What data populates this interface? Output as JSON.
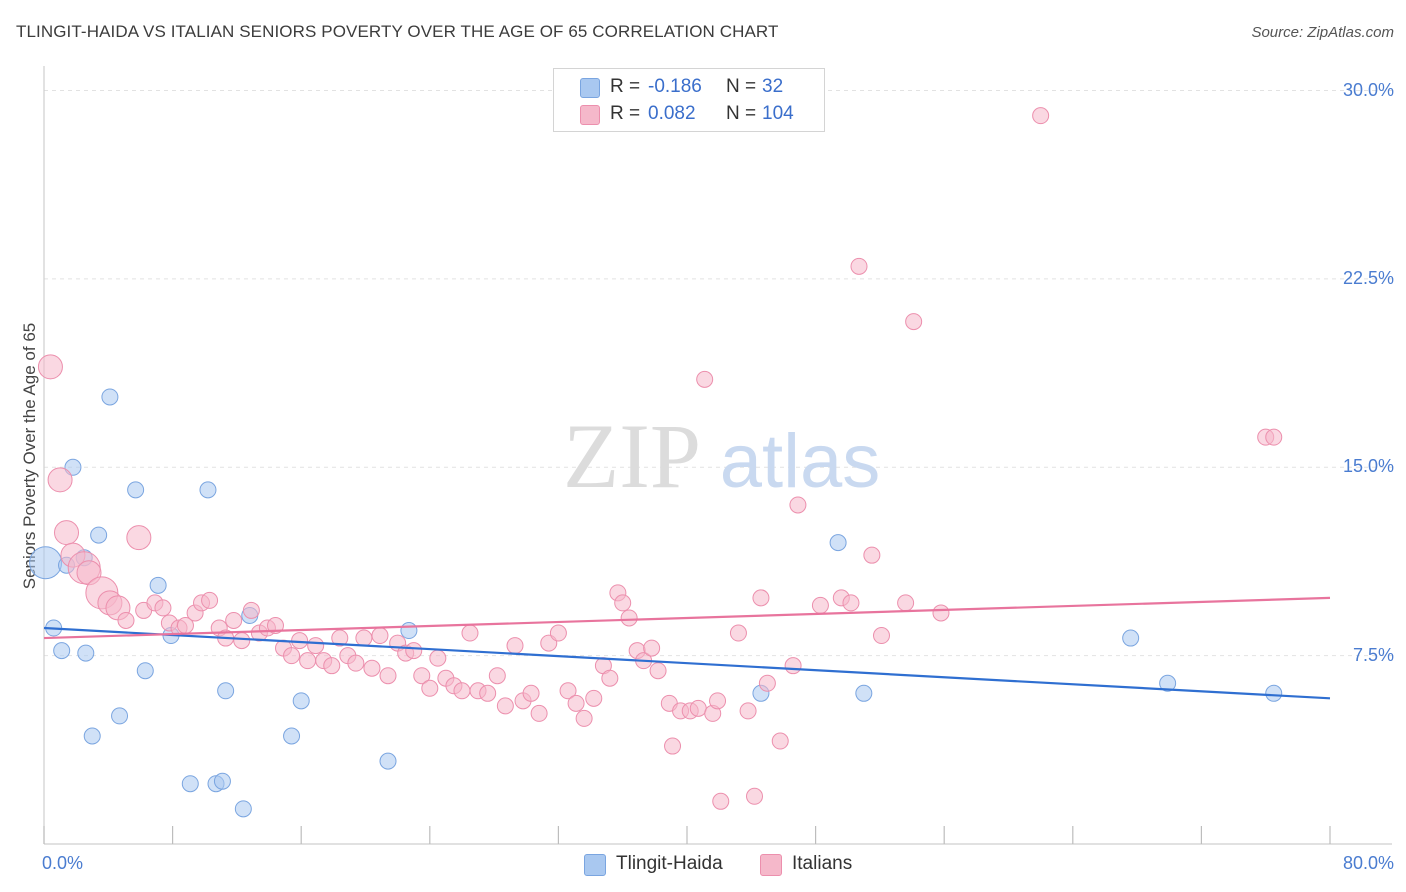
{
  "title": "TLINGIT-HAIDA VS ITALIAN SENIORS POVERTY OVER THE AGE OF 65 CORRELATION CHART",
  "source": "Source: ZipAtlas.com",
  "watermark": {
    "zip": "ZIP",
    "atlas": "atlas"
  },
  "stats": [
    {
      "r_label": "R =",
      "r_value": "-0.186",
      "n_label": "N =",
      "n_value": "32",
      "color": "#a9c8f0"
    },
    {
      "r_label": "R =",
      "r_value": "0.082",
      "n_label": "N =",
      "n_value": "104",
      "color": "#f5b8ca"
    }
  ],
  "chart_data": {
    "type": "scatter",
    "title": "TLINGIT-HAIDA VS ITALIAN SENIORS POVERTY OVER THE AGE OF 65 CORRELATION CHART",
    "xlabel": "",
    "ylabel": "Seniors Poverty Over the Age of 65",
    "xlim": [
      0,
      80
    ],
    "ylim": [
      0,
      30.5
    ],
    "x_tick_labels": [
      {
        "value": 0,
        "label": "0.0%"
      },
      {
        "value": 80,
        "label": "80.0%"
      }
    ],
    "y_tick_labels": [
      {
        "value": 7.5,
        "label": "7.5%"
      },
      {
        "value": 15,
        "label": "15.0%"
      },
      {
        "value": 22.5,
        "label": "22.5%"
      },
      {
        "value": 30,
        "label": "30.0%"
      }
    ],
    "grid": "horizontal dashed",
    "legend_position": "bottom-center",
    "series": [
      {
        "name": "Tlingit-Haida",
        "color": "#a9c8f0",
        "stroke": "#7aa5e0",
        "trend_color": "#2f6fd1",
        "trend": {
          "x": [
            0,
            80
          ],
          "y": [
            8.6,
            5.8
          ]
        },
        "points": [
          {
            "x": 0.1,
            "y": 11.2,
            "s": 3
          },
          {
            "x": 0.6,
            "y": 8.6,
            "s": 1
          },
          {
            "x": 1.1,
            "y": 7.7,
            "s": 1
          },
          {
            "x": 1.4,
            "y": 11.1,
            "s": 1
          },
          {
            "x": 1.8,
            "y": 15.0,
            "s": 1
          },
          {
            "x": 2.5,
            "y": 11.4,
            "s": 1
          },
          {
            "x": 2.6,
            "y": 7.6,
            "s": 1
          },
          {
            "x": 3.0,
            "y": 4.3,
            "s": 1
          },
          {
            "x": 3.4,
            "y": 12.3,
            "s": 1
          },
          {
            "x": 4.1,
            "y": 17.8,
            "s": 1
          },
          {
            "x": 4.7,
            "y": 5.1,
            "s": 1
          },
          {
            "x": 5.7,
            "y": 14.1,
            "s": 1
          },
          {
            "x": 6.3,
            "y": 6.9,
            "s": 1
          },
          {
            "x": 7.1,
            "y": 10.3,
            "s": 1
          },
          {
            "x": 7.9,
            "y": 8.3,
            "s": 1
          },
          {
            "x": 9.1,
            "y": 2.4,
            "s": 1
          },
          {
            "x": 10.2,
            "y": 14.1,
            "s": 1
          },
          {
            "x": 10.7,
            "y": 2.4,
            "s": 1
          },
          {
            "x": 11.1,
            "y": 2.5,
            "s": 1
          },
          {
            "x": 11.3,
            "y": 6.1,
            "s": 1
          },
          {
            "x": 12.4,
            "y": 1.4,
            "s": 1
          },
          {
            "x": 12.8,
            "y": 9.1,
            "s": 1
          },
          {
            "x": 15.4,
            "y": 4.3,
            "s": 1
          },
          {
            "x": 16.0,
            "y": 5.7,
            "s": 1
          },
          {
            "x": 21.4,
            "y": 3.3,
            "s": 1
          },
          {
            "x": 22.7,
            "y": 8.5,
            "s": 1
          },
          {
            "x": 44.6,
            "y": 6.0,
            "s": 1
          },
          {
            "x": 49.4,
            "y": 12.0,
            "s": 1
          },
          {
            "x": 51.0,
            "y": 6.0,
            "s": 1
          },
          {
            "x": 67.6,
            "y": 8.2,
            "s": 1
          },
          {
            "x": 69.9,
            "y": 6.4,
            "s": 1
          },
          {
            "x": 76.5,
            "y": 6.0,
            "s": 1
          }
        ]
      },
      {
        "name": "Italians",
        "color": "#f5b8ca",
        "stroke": "#ec8fad",
        "trend_color": "#e8749d",
        "trend": {
          "x": [
            0,
            80
          ],
          "y": [
            8.2,
            9.8
          ]
        },
        "points": [
          {
            "x": 0.4,
            "y": 19.0,
            "s": 2
          },
          {
            "x": 1.0,
            "y": 14.5,
            "s": 2
          },
          {
            "x": 1.4,
            "y": 12.4,
            "s": 2
          },
          {
            "x": 1.8,
            "y": 11.5,
            "s": 2
          },
          {
            "x": 2.5,
            "y": 11.0,
            "s": 3
          },
          {
            "x": 2.8,
            "y": 10.8,
            "s": 2
          },
          {
            "x": 3.6,
            "y": 10.0,
            "s": 3
          },
          {
            "x": 4.1,
            "y": 9.6,
            "s": 2
          },
          {
            "x": 4.6,
            "y": 9.4,
            "s": 2
          },
          {
            "x": 5.1,
            "y": 8.9,
            "s": 1
          },
          {
            "x": 5.9,
            "y": 12.2,
            "s": 2
          },
          {
            "x": 6.2,
            "y": 9.3,
            "s": 1
          },
          {
            "x": 6.9,
            "y": 9.6,
            "s": 1
          },
          {
            "x": 7.4,
            "y": 9.4,
            "s": 1
          },
          {
            "x": 7.8,
            "y": 8.8,
            "s": 1
          },
          {
            "x": 8.4,
            "y": 8.6,
            "s": 1
          },
          {
            "x": 8.8,
            "y": 8.7,
            "s": 1
          },
          {
            "x": 9.4,
            "y": 9.2,
            "s": 1
          },
          {
            "x": 9.8,
            "y": 9.6,
            "s": 1
          },
          {
            "x": 10.3,
            "y": 9.7,
            "s": 1
          },
          {
            "x": 10.9,
            "y": 8.6,
            "s": 1
          },
          {
            "x": 11.3,
            "y": 8.2,
            "s": 1
          },
          {
            "x": 11.8,
            "y": 8.9,
            "s": 1
          },
          {
            "x": 12.3,
            "y": 8.1,
            "s": 1
          },
          {
            "x": 12.9,
            "y": 9.3,
            "s": 1
          },
          {
            "x": 13.4,
            "y": 8.4,
            "s": 1
          },
          {
            "x": 13.9,
            "y": 8.6,
            "s": 1
          },
          {
            "x": 14.4,
            "y": 8.7,
            "s": 1
          },
          {
            "x": 14.9,
            "y": 7.8,
            "s": 1
          },
          {
            "x": 15.4,
            "y": 7.5,
            "s": 1
          },
          {
            "x": 15.9,
            "y": 8.1,
            "s": 1
          },
          {
            "x": 16.4,
            "y": 7.3,
            "s": 1
          },
          {
            "x": 16.9,
            "y": 7.9,
            "s": 1
          },
          {
            "x": 17.4,
            "y": 7.3,
            "s": 1
          },
          {
            "x": 17.9,
            "y": 7.1,
            "s": 1
          },
          {
            "x": 18.4,
            "y": 8.2,
            "s": 1
          },
          {
            "x": 18.9,
            "y": 7.5,
            "s": 1
          },
          {
            "x": 19.4,
            "y": 7.2,
            "s": 1
          },
          {
            "x": 19.9,
            "y": 8.2,
            "s": 1
          },
          {
            "x": 20.4,
            "y": 7.0,
            "s": 1
          },
          {
            "x": 20.9,
            "y": 8.3,
            "s": 1
          },
          {
            "x": 21.4,
            "y": 6.7,
            "s": 1
          },
          {
            "x": 22.0,
            "y": 8.0,
            "s": 1
          },
          {
            "x": 22.5,
            "y": 7.6,
            "s": 1
          },
          {
            "x": 23.0,
            "y": 7.7,
            "s": 1
          },
          {
            "x": 23.5,
            "y": 6.7,
            "s": 1
          },
          {
            "x": 24.0,
            "y": 6.2,
            "s": 1
          },
          {
            "x": 24.5,
            "y": 7.4,
            "s": 1
          },
          {
            "x": 25.0,
            "y": 6.6,
            "s": 1
          },
          {
            "x": 25.5,
            "y": 6.3,
            "s": 1
          },
          {
            "x": 26.0,
            "y": 6.1,
            "s": 1
          },
          {
            "x": 26.5,
            "y": 8.4,
            "s": 1
          },
          {
            "x": 27.0,
            "y": 6.1,
            "s": 1
          },
          {
            "x": 27.6,
            "y": 6.0,
            "s": 1
          },
          {
            "x": 28.2,
            "y": 6.7,
            "s": 1
          },
          {
            "x": 28.7,
            "y": 5.5,
            "s": 1
          },
          {
            "x": 29.3,
            "y": 7.9,
            "s": 1
          },
          {
            "x": 29.8,
            "y": 5.7,
            "s": 1
          },
          {
            "x": 30.3,
            "y": 6.0,
            "s": 1
          },
          {
            "x": 30.8,
            "y": 5.2,
            "s": 1
          },
          {
            "x": 31.4,
            "y": 8.0,
            "s": 1
          },
          {
            "x": 32.0,
            "y": 8.4,
            "s": 1
          },
          {
            "x": 32.6,
            "y": 6.1,
            "s": 1
          },
          {
            "x": 33.1,
            "y": 5.6,
            "s": 1
          },
          {
            "x": 33.6,
            "y": 5.0,
            "s": 1
          },
          {
            "x": 34.2,
            "y": 5.8,
            "s": 1
          },
          {
            "x": 34.8,
            "y": 7.1,
            "s": 1
          },
          {
            "x": 35.2,
            "y": 6.6,
            "s": 1
          },
          {
            "x": 35.7,
            "y": 10.0,
            "s": 1
          },
          {
            "x": 36.0,
            "y": 9.6,
            "s": 1
          },
          {
            "x": 36.4,
            "y": 9.0,
            "s": 1
          },
          {
            "x": 36.9,
            "y": 7.7,
            "s": 1
          },
          {
            "x": 37.3,
            "y": 7.3,
            "s": 1
          },
          {
            "x": 37.8,
            "y": 7.8,
            "s": 1
          },
          {
            "x": 38.2,
            "y": 6.9,
            "s": 1
          },
          {
            "x": 38.9,
            "y": 5.6,
            "s": 1
          },
          {
            "x": 39.1,
            "y": 3.9,
            "s": 1
          },
          {
            "x": 39.6,
            "y": 5.3,
            "s": 1
          },
          {
            "x": 40.2,
            "y": 5.3,
            "s": 1
          },
          {
            "x": 40.7,
            "y": 5.4,
            "s": 1
          },
          {
            "x": 41.1,
            "y": 18.5,
            "s": 1
          },
          {
            "x": 41.6,
            "y": 5.2,
            "s": 1
          },
          {
            "x": 41.9,
            "y": 5.7,
            "s": 1
          },
          {
            "x": 42.1,
            "y": 1.7,
            "s": 1
          },
          {
            "x": 43.2,
            "y": 8.4,
            "s": 1
          },
          {
            "x": 43.8,
            "y": 5.3,
            "s": 1
          },
          {
            "x": 44.2,
            "y": 1.9,
            "s": 1
          },
          {
            "x": 44.6,
            "y": 9.8,
            "s": 1
          },
          {
            "x": 45.0,
            "y": 6.4,
            "s": 1
          },
          {
            "x": 45.8,
            "y": 4.1,
            "s": 1
          },
          {
            "x": 46.6,
            "y": 7.1,
            "s": 1
          },
          {
            "x": 46.9,
            "y": 13.5,
            "s": 1
          },
          {
            "x": 48.3,
            "y": 9.5,
            "s": 1
          },
          {
            "x": 49.6,
            "y": 9.8,
            "s": 1
          },
          {
            "x": 50.2,
            "y": 9.6,
            "s": 1
          },
          {
            "x": 50.7,
            "y": 23.0,
            "s": 1
          },
          {
            "x": 51.5,
            "y": 11.5,
            "s": 1
          },
          {
            "x": 52.1,
            "y": 8.3,
            "s": 1
          },
          {
            "x": 53.6,
            "y": 9.6,
            "s": 1
          },
          {
            "x": 54.1,
            "y": 20.8,
            "s": 1
          },
          {
            "x": 55.8,
            "y": 9.2,
            "s": 1
          },
          {
            "x": 76.0,
            "y": 16.2,
            "s": 1
          },
          {
            "x": 76.5,
            "y": 16.2,
            "s": 1
          },
          {
            "x": 62.0,
            "y": 29.0,
            "s": 1
          }
        ]
      }
    ]
  },
  "legend": [
    {
      "label": "Tlingit-Haida",
      "color": "#a9c8f0"
    },
    {
      "label": "Italians",
      "color": "#f5b8ca"
    }
  ]
}
